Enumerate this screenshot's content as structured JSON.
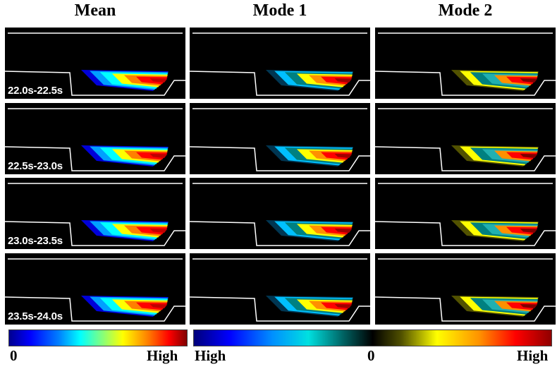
{
  "columns": [
    "Mean",
    "Mode 1",
    "Mode 2"
  ],
  "rows": [
    "22.0s-22.5s",
    "22.5s-23.0s",
    "23.0s-23.5s",
    "23.5s-24.0s"
  ],
  "colorbars": {
    "mean": {
      "min_label": "0",
      "max_label": "High",
      "colormap": "jet"
    },
    "modes": {
      "left_label": "High",
      "center_label": "0",
      "right_label": "High",
      "colormap": "diverging-blue-black-red"
    }
  },
  "colors": {
    "background": "#000000",
    "outline": "#ffffff"
  }
}
